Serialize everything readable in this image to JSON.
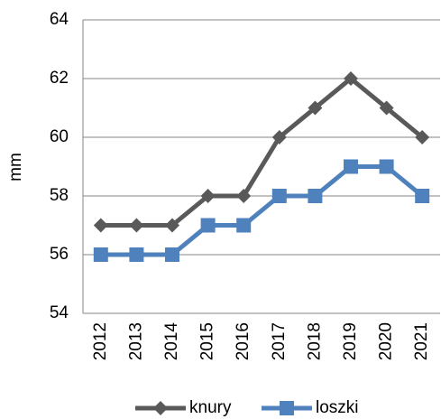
{
  "chart_data": {
    "type": "line",
    "y_label": "mm",
    "categories": [
      "2012",
      "2013",
      "2014",
      "2015",
      "2016",
      "2017",
      "2018",
      "2019",
      "2020",
      "2021"
    ],
    "series": [
      {
        "name": "knury",
        "color": "#595959",
        "marker": "diamond",
        "values": [
          57,
          57,
          57,
          58,
          58,
          60,
          61,
          62,
          61,
          60
        ]
      },
      {
        "name": "loszki",
        "color": "#4f81bd",
        "marker": "square",
        "values": [
          56,
          56,
          56,
          57,
          57,
          58,
          58,
          59,
          59,
          58
        ]
      }
    ],
    "ylim": [
      54,
      64
    ],
    "yticks": [
      54,
      56,
      58,
      60,
      62,
      64
    ],
    "grid": true,
    "legend": "bottom"
  }
}
